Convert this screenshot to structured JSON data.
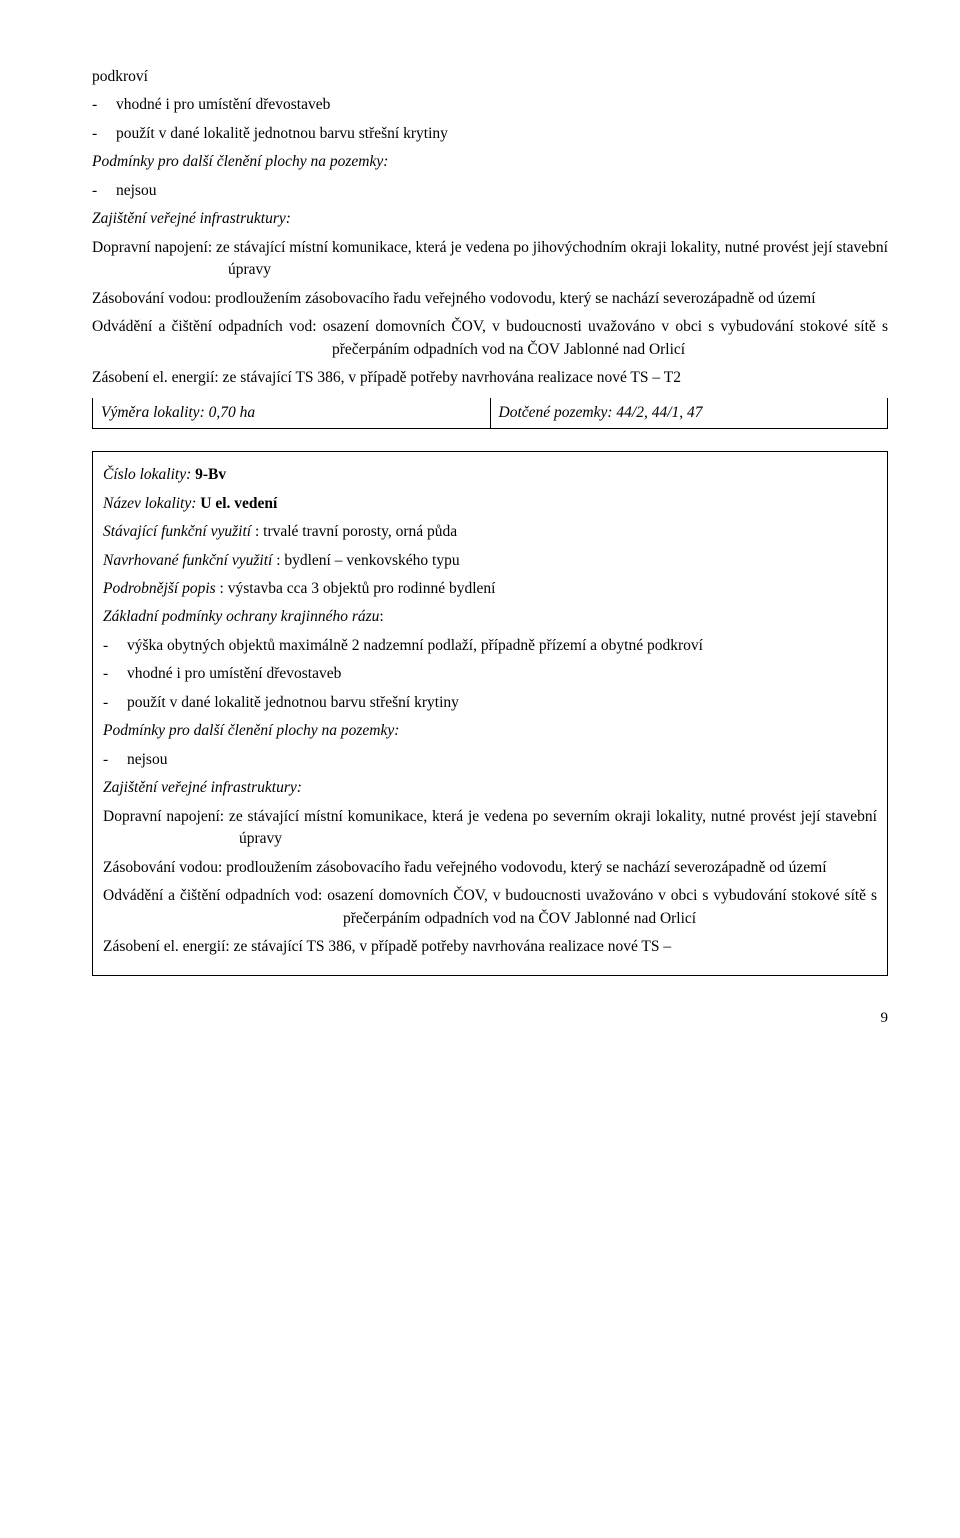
{
  "top": {
    "b1": "podkroví",
    "b2": "vhodné i pro umístění dřevostaveb",
    "b3": "použít v dané lokalitě jednotnou barvu střešní krytiny",
    "cond_heading": "Podmínky pro další členění plochy na pozemky:",
    "b4": "nejsou",
    "infra_heading": "Zajištění veřejné infrastruktury:",
    "dopr": "Dopravní napojení: ze stávající místní komunikace, která je vedena po jihovýchodním okraji lokality, nutné provést její stavební úpravy",
    "zasob": "Zásobování vodou: prodloužením zásobovacího řadu veřejného vodovodu, který se nachází severozápadně od území",
    "odvad": "Odvádění a čištění odpadních vod: osazení domovních ČOV, v budoucnosti uvažováno v obci s vybudování stokové sítě s přečerpáním odpadních vod na ČOV Jablonné nad Orlicí",
    "zasobeni": "Zásobení el. energií: ze stávající TS 386, v případě potřeby navrhována realizace nové TS – T2",
    "vymera_label": "Výměra lokality",
    "vymera_val": ": 0,70 ha",
    "dotcene_label": "Dotčené pozemky:",
    "dotcene_val": " 44/2, 44/1, 47"
  },
  "box": {
    "num_label": "Číslo lokality:",
    "num_val": " 9-Bv",
    "name_label": "Název lokality:",
    "name_val": "   U el. vedení",
    "stav_label": "Stávající funkční využití",
    "stav_val": " : trvalé travní porosty, orná půda",
    "navrh_label": "Navrhované funkční využití",
    "navrh_val": " :  bydlení – venkovského typu",
    "podrob_label": "Podrobnější popis",
    "podrob_val": " : výstavba cca 3 objektů pro rodinné bydlení",
    "zakl_heading": "Základní podmínky ochrany krajinného rázu",
    "b1": "výška obytných objektů maximálně 2 nadzemní podlaží, případně přízemí a obytné podkroví",
    "b2": "vhodné i pro umístění dřevostaveb",
    "b3": "použít v dané lokalitě jednotnou barvu střešní krytiny",
    "cond_heading": "Podmínky pro další členění plochy na pozemky:",
    "b4": "nejsou",
    "infra_heading": "Zajištění veřejné infrastruktury:",
    "dopr": "Dopravní napojení: ze stávající místní komunikace, která je vedena po severním okraji lokality, nutné provést její stavební úpravy",
    "zasob": "Zásobování vodou: prodloužením zásobovacího řadu veřejného vodovodu, který se nachází severozápadně od území",
    "odvad": "Odvádění a čištění odpadních vod: osazení domovních ČOV, v budoucnosti uvažováno v obci s vybudování stokové sítě s přečerpáním odpadních vod na ČOV Jablonné nad Orlicí",
    "zasobeni": "Zásobení el. energií: ze stávající TS 386, v případě potřeby navrhována realizace nové TS –"
  },
  "page_number": "9"
}
